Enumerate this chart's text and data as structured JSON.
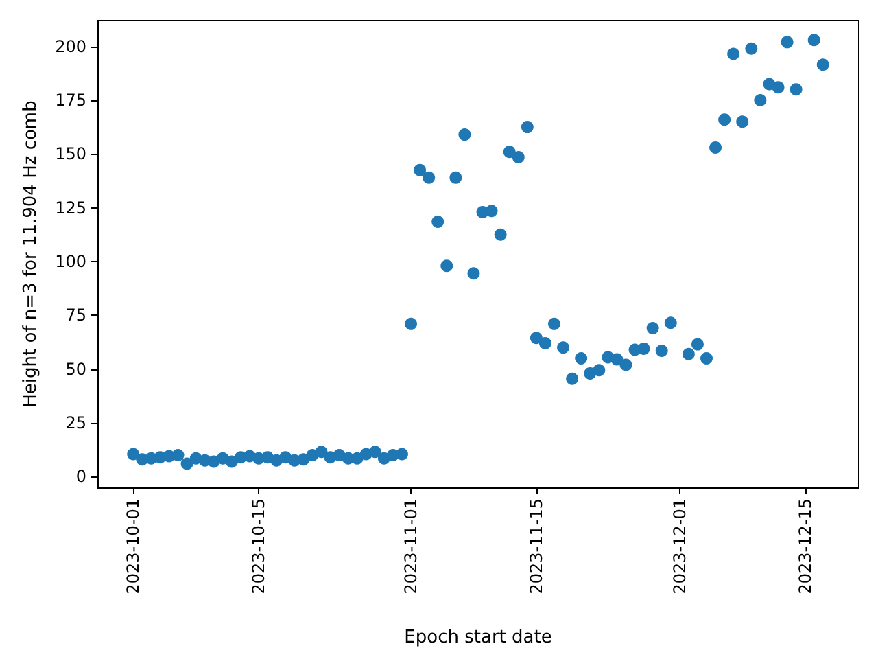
{
  "chart_data": {
    "type": "scatter",
    "xlabel": "Epoch start date",
    "ylabel": "Height of n=3 for 11.904 Hz comb",
    "x": [
      "2023-10-01",
      "2023-10-02",
      "2023-10-03",
      "2023-10-04",
      "2023-10-05",
      "2023-10-06",
      "2023-10-07",
      "2023-10-08",
      "2023-10-09",
      "2023-10-10",
      "2023-10-11",
      "2023-10-12",
      "2023-10-13",
      "2023-10-14",
      "2023-10-15",
      "2023-10-16",
      "2023-10-17",
      "2023-10-18",
      "2023-10-19",
      "2023-10-20",
      "2023-10-21",
      "2023-10-22",
      "2023-10-23",
      "2023-10-24",
      "2023-10-25",
      "2023-10-26",
      "2023-10-27",
      "2023-10-28",
      "2023-10-29",
      "2023-10-30",
      "2023-10-31",
      "2023-11-01",
      "2023-11-02",
      "2023-11-03",
      "2023-11-04",
      "2023-11-05",
      "2023-11-06",
      "2023-11-07",
      "2023-11-08",
      "2023-11-09",
      "2023-11-10",
      "2023-11-11",
      "2023-11-12",
      "2023-11-13",
      "2023-11-14",
      "2023-11-15",
      "2023-11-16",
      "2023-11-17",
      "2023-11-18",
      "2023-11-19",
      "2023-11-20",
      "2023-11-21",
      "2023-11-22",
      "2023-11-23",
      "2023-11-24",
      "2023-11-25",
      "2023-11-26",
      "2023-11-27",
      "2023-11-28",
      "2023-11-29",
      "2023-11-30",
      "2023-12-02",
      "2023-12-03",
      "2023-12-04",
      "2023-12-05",
      "2023-12-06",
      "2023-12-07",
      "2023-12-08",
      "2023-12-09",
      "2023-12-10",
      "2023-12-11",
      "2023-12-12",
      "2023-12-13",
      "2023-12-14",
      "2023-12-16",
      "2023-12-17"
    ],
    "series": [
      {
        "color": "#1f77b4",
        "values": [
          10.5,
          8,
          8.5,
          9,
          9.5,
          10,
          6,
          8.5,
          7.5,
          7,
          8.5,
          7,
          9,
          9.5,
          8.5,
          9,
          7.5,
          9,
          7.5,
          8,
          10,
          11.5,
          9,
          10,
          8.5,
          8.5,
          10.5,
          11.5,
          8.5,
          10,
          10.5,
          71,
          142.5,
          139,
          118.5,
          98,
          139,
          159,
          94.5,
          123,
          123.5,
          112.5,
          151,
          148.5,
          162.5,
          64.5,
          62,
          71,
          60,
          45.5,
          55,
          48,
          49.5,
          55.5,
          54.5,
          52,
          59,
          59.5,
          69,
          58.5,
          71.5,
          57,
          61.5,
          55,
          153,
          166,
          196.5,
          165,
          199,
          175,
          182.5,
          181,
          202,
          180,
          203,
          191.5
        ]
      }
    ],
    "xlim": [
      "2023-09-27",
      "2023-12-21"
    ],
    "xticks": [
      "2023-10-01",
      "2023-10-15",
      "2023-11-01",
      "2023-11-15",
      "2023-12-01",
      "2023-12-15"
    ],
    "ylim": [
      -5,
      212
    ],
    "yticks": [
      0,
      25,
      50,
      75,
      100,
      125,
      150,
      175,
      200
    ],
    "marker": "circle"
  }
}
